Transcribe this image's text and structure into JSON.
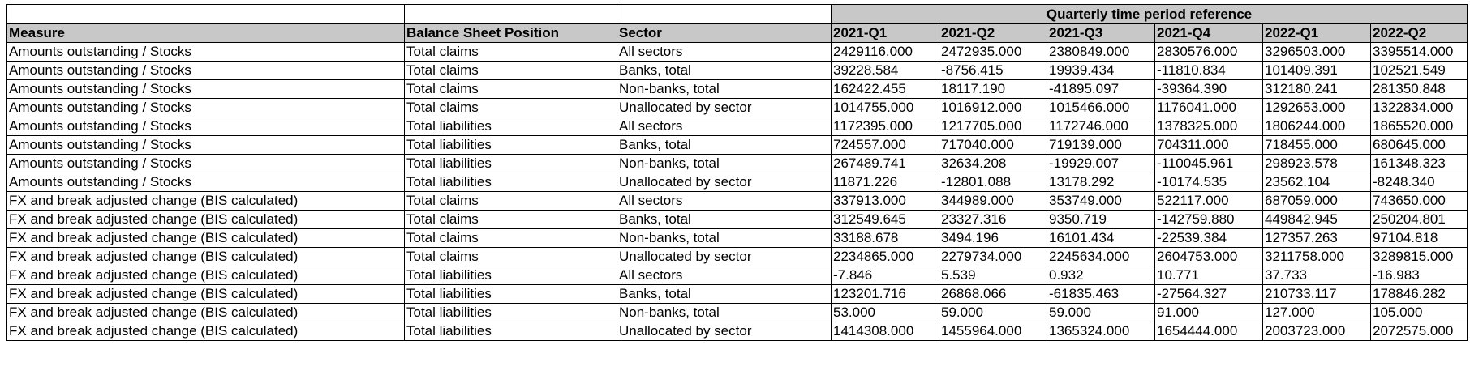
{
  "table": {
    "group_header": "Quarterly time period reference",
    "columns": [
      "Measure",
      "Balance Sheet Position",
      "Sector",
      "2021-Q1",
      "2021-Q2",
      "2021-Q3",
      "2021-Q4",
      "2022-Q1",
      "2022-Q2"
    ],
    "rows": [
      [
        "Amounts outstanding / Stocks",
        "Total claims",
        "All sectors",
        "2429116.000",
        "2472935.000",
        "2380849.000",
        "2830576.000",
        "3296503.000",
        "3395514.000"
      ],
      [
        "Amounts outstanding / Stocks",
        "Total claims",
        "Banks, total",
        "39228.584",
        "-8756.415",
        "19939.434",
        "-11810.834",
        "101409.391",
        "102521.549"
      ],
      [
        "Amounts outstanding / Stocks",
        "Total claims",
        "Non-banks, total",
        "162422.455",
        "18117.190",
        "-41895.097",
        "-39364.390",
        "312180.241",
        "281350.848"
      ],
      [
        "Amounts outstanding / Stocks",
        "Total claims",
        "Unallocated by sector",
        "1014755.000",
        "1016912.000",
        "1015466.000",
        "1176041.000",
        "1292653.000",
        "1322834.000"
      ],
      [
        "Amounts outstanding / Stocks",
        "Total liabilities",
        "All sectors",
        "1172395.000",
        "1217705.000",
        "1172746.000",
        "1378325.000",
        "1806244.000",
        "1865520.000"
      ],
      [
        "Amounts outstanding / Stocks",
        "Total liabilities",
        "Banks, total",
        "724557.000",
        "717040.000",
        "719139.000",
        "704311.000",
        "718455.000",
        "680645.000"
      ],
      [
        "Amounts outstanding / Stocks",
        "Total liabilities",
        "Non-banks, total",
        "267489.741",
        "32634.208",
        "-19929.007",
        "-110045.961",
        "298923.578",
        "161348.323"
      ],
      [
        "Amounts outstanding / Stocks",
        "Total liabilities",
        "Unallocated by sector",
        "11871.226",
        "-12801.088",
        "13178.292",
        "-10174.535",
        "23562.104",
        "-8248.340"
      ],
      [
        "FX and break adjusted change (BIS calculated)",
        "Total claims",
        "All sectors",
        "337913.000",
        "344989.000",
        "353749.000",
        "522117.000",
        "687059.000",
        "743650.000"
      ],
      [
        "FX and break adjusted change (BIS calculated)",
        "Total claims",
        "Banks, total",
        "312549.645",
        "23327.316",
        "9350.719",
        "-142759.880",
        "449842.945",
        "250204.801"
      ],
      [
        "FX and break adjusted change (BIS calculated)",
        "Total claims",
        "Non-banks, total",
        "33188.678",
        "3494.196",
        "16101.434",
        "-22539.384",
        "127357.263",
        "97104.818"
      ],
      [
        "FX and break adjusted change (BIS calculated)",
        "Total claims",
        "Unallocated by sector",
        "2234865.000",
        "2279734.000",
        "2245634.000",
        "2604753.000",
        "3211758.000",
        "3289815.000"
      ],
      [
        "FX and break adjusted change (BIS calculated)",
        "Total liabilities",
        "All sectors",
        "-7.846",
        "5.539",
        "0.932",
        "10.771",
        "37.733",
        "-16.983"
      ],
      [
        "FX and break adjusted change (BIS calculated)",
        "Total liabilities",
        "Banks, total",
        "123201.716",
        "26868.066",
        "-61835.463",
        "-27564.327",
        "210733.117",
        "178846.282"
      ],
      [
        "FX and break adjusted change (BIS calculated)",
        "Total liabilities",
        "Non-banks, total",
        "53.000",
        "59.000",
        "59.000",
        "91.000",
        "127.000",
        "105.000"
      ],
      [
        "FX and break adjusted change (BIS calculated)",
        "Total liabilities",
        "Unallocated by sector",
        "1414308.000",
        "1455964.000",
        "1365324.000",
        "1654444.000",
        "2003723.000",
        "2072575.000"
      ]
    ]
  }
}
